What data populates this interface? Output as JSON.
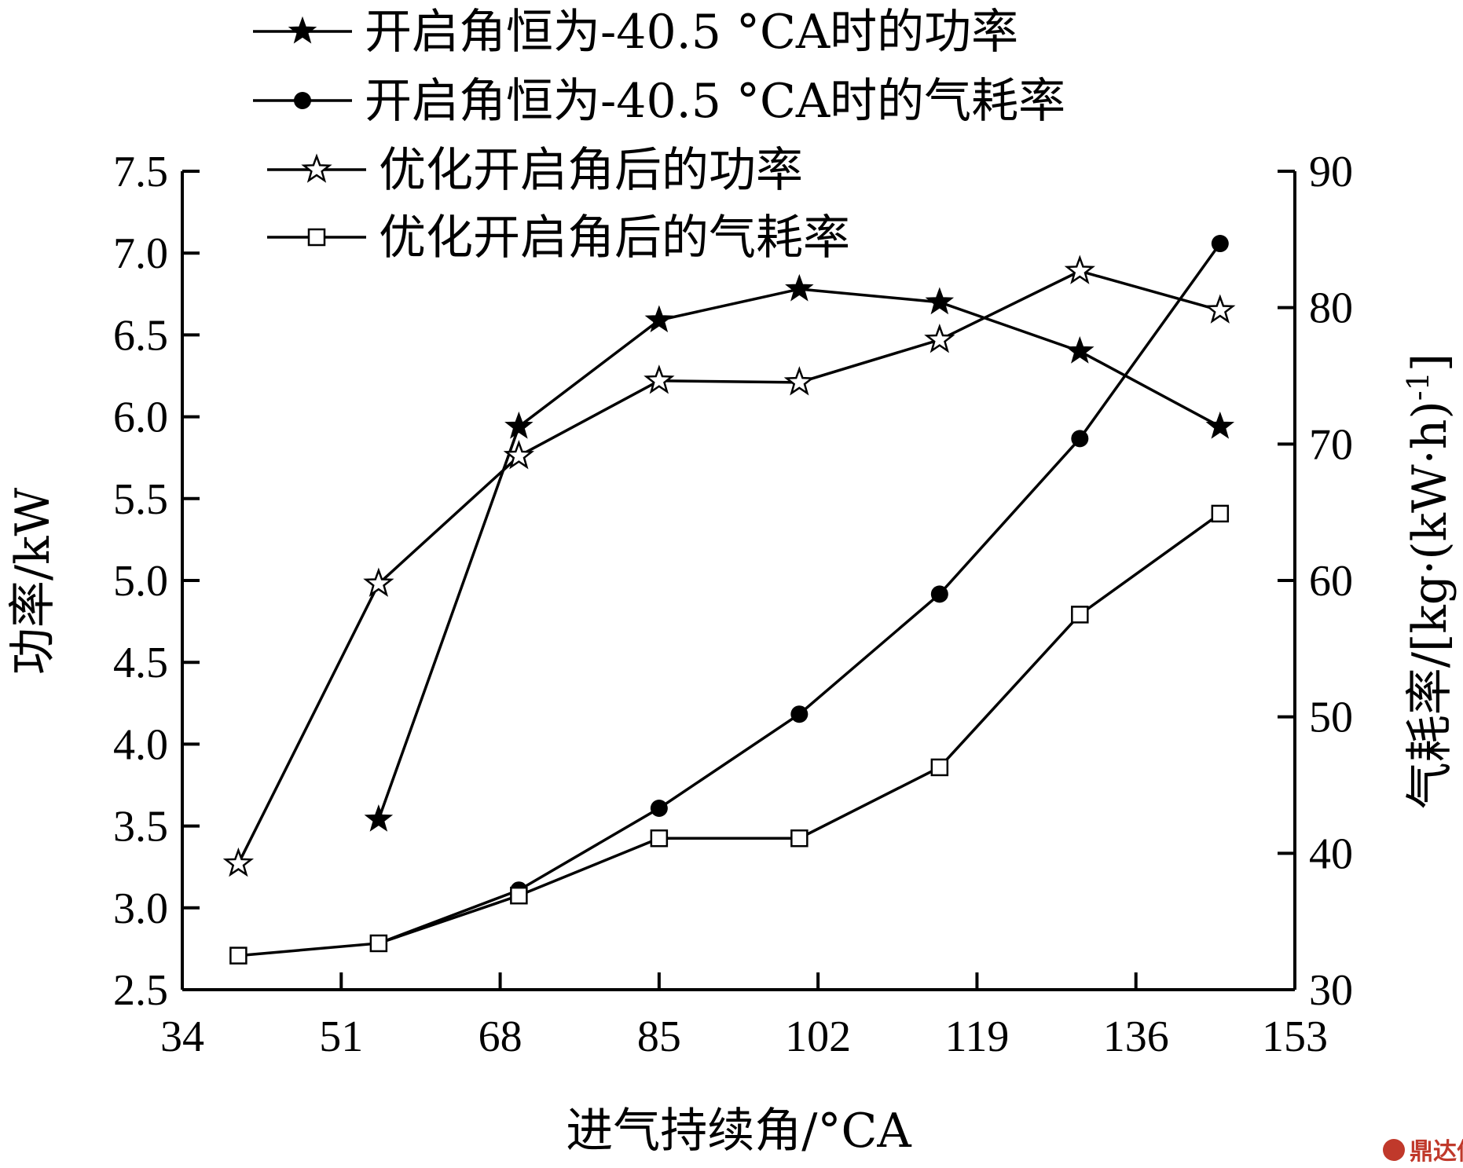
{
  "chart_data": {
    "type": "line",
    "xlabel": "进气持续角/°CA",
    "ylabel_left": "功率/kW",
    "ylabel_right": "气耗率/[kg·(kW·h)",
    "ylabel_right_sup": "-1",
    "ylabel_right_end": "]",
    "xlim": [
      34,
      153
    ],
    "x_ticks": [
      "34",
      "51",
      "68",
      "85",
      "102",
      "119",
      "136",
      "153"
    ],
    "ylim_left": [
      2.5,
      7.5
    ],
    "y_ticks_left": [
      "2.5",
      "3.0",
      "3.5",
      "4.0",
      "4.5",
      "5.0",
      "5.5",
      "6.0",
      "6.5",
      "7.0",
      "7.5"
    ],
    "ylim_right": [
      30,
      90
    ],
    "y_ticks_right": [
      "30",
      "40",
      "50",
      "60",
      "70",
      "80",
      "90"
    ],
    "legend_position": "top",
    "series": [
      {
        "name": "开启角恒为-40.5 °CA时的功率",
        "axis": "left",
        "marker": "star-filled",
        "x": [
          55,
          70,
          85,
          100,
          115,
          130,
          145
        ],
        "values": [
          3.54,
          5.94,
          6.59,
          6.78,
          6.7,
          6.4,
          5.94
        ]
      },
      {
        "name": "开启角恒为-40.5 °CA时的气耗率",
        "axis": "right",
        "marker": "circle-filled",
        "x": [
          55,
          70,
          85,
          100,
          115,
          130,
          145
        ],
        "values": [
          33.4,
          37.3,
          43.3,
          50.2,
          59.0,
          70.4,
          84.7
        ]
      },
      {
        "name": "优化开启角后的功率",
        "axis": "left",
        "marker": "star-open",
        "x": [
          40,
          55,
          70,
          85,
          100,
          115,
          130,
          145
        ],
        "values": [
          3.27,
          4.98,
          5.76,
          6.22,
          6.21,
          6.47,
          6.89,
          6.65
        ]
      },
      {
        "name": "优化开启角后的气耗率",
        "axis": "right",
        "marker": "square-open",
        "x": [
          40,
          55,
          70,
          85,
          100,
          115,
          130,
          145
        ],
        "values": [
          32.5,
          33.4,
          36.9,
          41.1,
          41.1,
          46.3,
          57.5,
          64.9
        ]
      }
    ]
  },
  "watermark": "鼎达信"
}
